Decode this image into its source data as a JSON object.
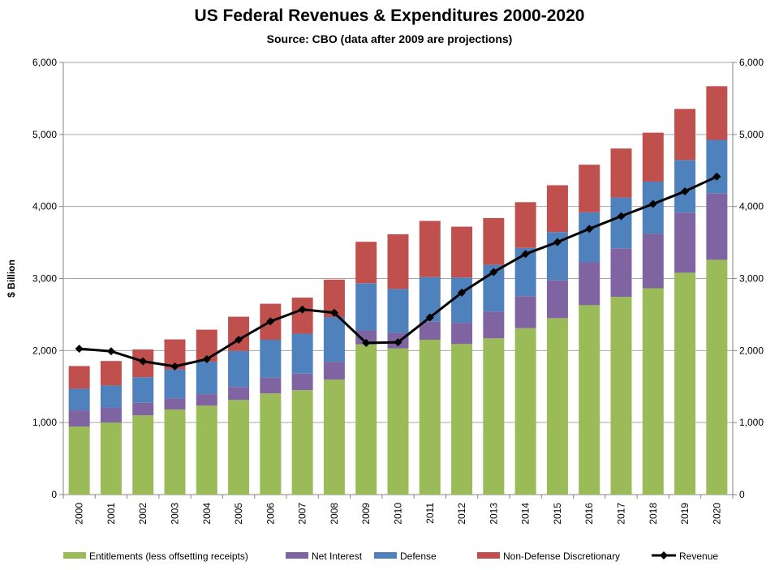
{
  "chart_data": {
    "type": "bar",
    "stacked": true,
    "title": "US Federal Revenues & Expenditures 2000-2020",
    "subtitle": "Source:  CBO (data after 2009 are projections)",
    "xlabel": "",
    "ylabel": "$ Billion",
    "ylim": [
      0,
      6000
    ],
    "yticks": [
      "0",
      "1,000",
      "2,000",
      "3,000",
      "4,000",
      "5,000",
      "6,000"
    ],
    "y2ticks": [
      "0",
      "1,000",
      "2,000",
      "3,000",
      "4,000",
      "5,000",
      "6,000"
    ],
    "grid": true,
    "legend": "bottom",
    "categories": [
      "2000",
      "2001",
      "2002",
      "2003",
      "2004",
      "2005",
      "2006",
      "2007",
      "2008",
      "2009",
      "2010",
      "2011",
      "2012",
      "2013",
      "2014",
      "2015",
      "2016",
      "2017",
      "2018",
      "2019",
      "2020"
    ],
    "series": [
      {
        "name": "Entitlements (less offsetting receipts)",
        "type": "bar",
        "color": "#9BBB59",
        "values": [
          945,
          1000,
          1100,
          1180,
          1235,
          1315,
          1405,
          1450,
          1595,
          2085,
          2030,
          2150,
          2090,
          2170,
          2310,
          2450,
          2630,
          2745,
          2865,
          3080,
          3260
        ]
      },
      {
        "name": "Net Interest",
        "type": "bar",
        "color": "#8064A2",
        "values": [
          225,
          205,
          175,
          155,
          160,
          180,
          220,
          230,
          250,
          195,
          215,
          250,
          295,
          370,
          445,
          525,
          595,
          675,
          755,
          835,
          920
        ]
      },
      {
        "name": "Defense",
        "type": "bar",
        "color": "#4F81BD",
        "values": [
          300,
          310,
          355,
          405,
          450,
          500,
          525,
          555,
          620,
          655,
          610,
          620,
          630,
          650,
          670,
          670,
          695,
          705,
          725,
          730,
          745
        ]
      },
      {
        "name": "Non-Defense Discretionary",
        "type": "bar",
        "color": "#C0504D",
        "values": [
          315,
          340,
          385,
          415,
          445,
          475,
          500,
          500,
          520,
          575,
          760,
          780,
          705,
          650,
          635,
          650,
          660,
          680,
          680,
          710,
          745
        ]
      },
      {
        "name": "Revenue",
        "type": "line",
        "color": "#000000",
        "marker": "diamond",
        "values": [
          2025,
          1990,
          1850,
          1780,
          1880,
          2150,
          2405,
          2570,
          2525,
          2105,
          2115,
          2460,
          2805,
          3090,
          3340,
          3505,
          3690,
          3865,
          4035,
          4210,
          4415
        ]
      }
    ]
  }
}
